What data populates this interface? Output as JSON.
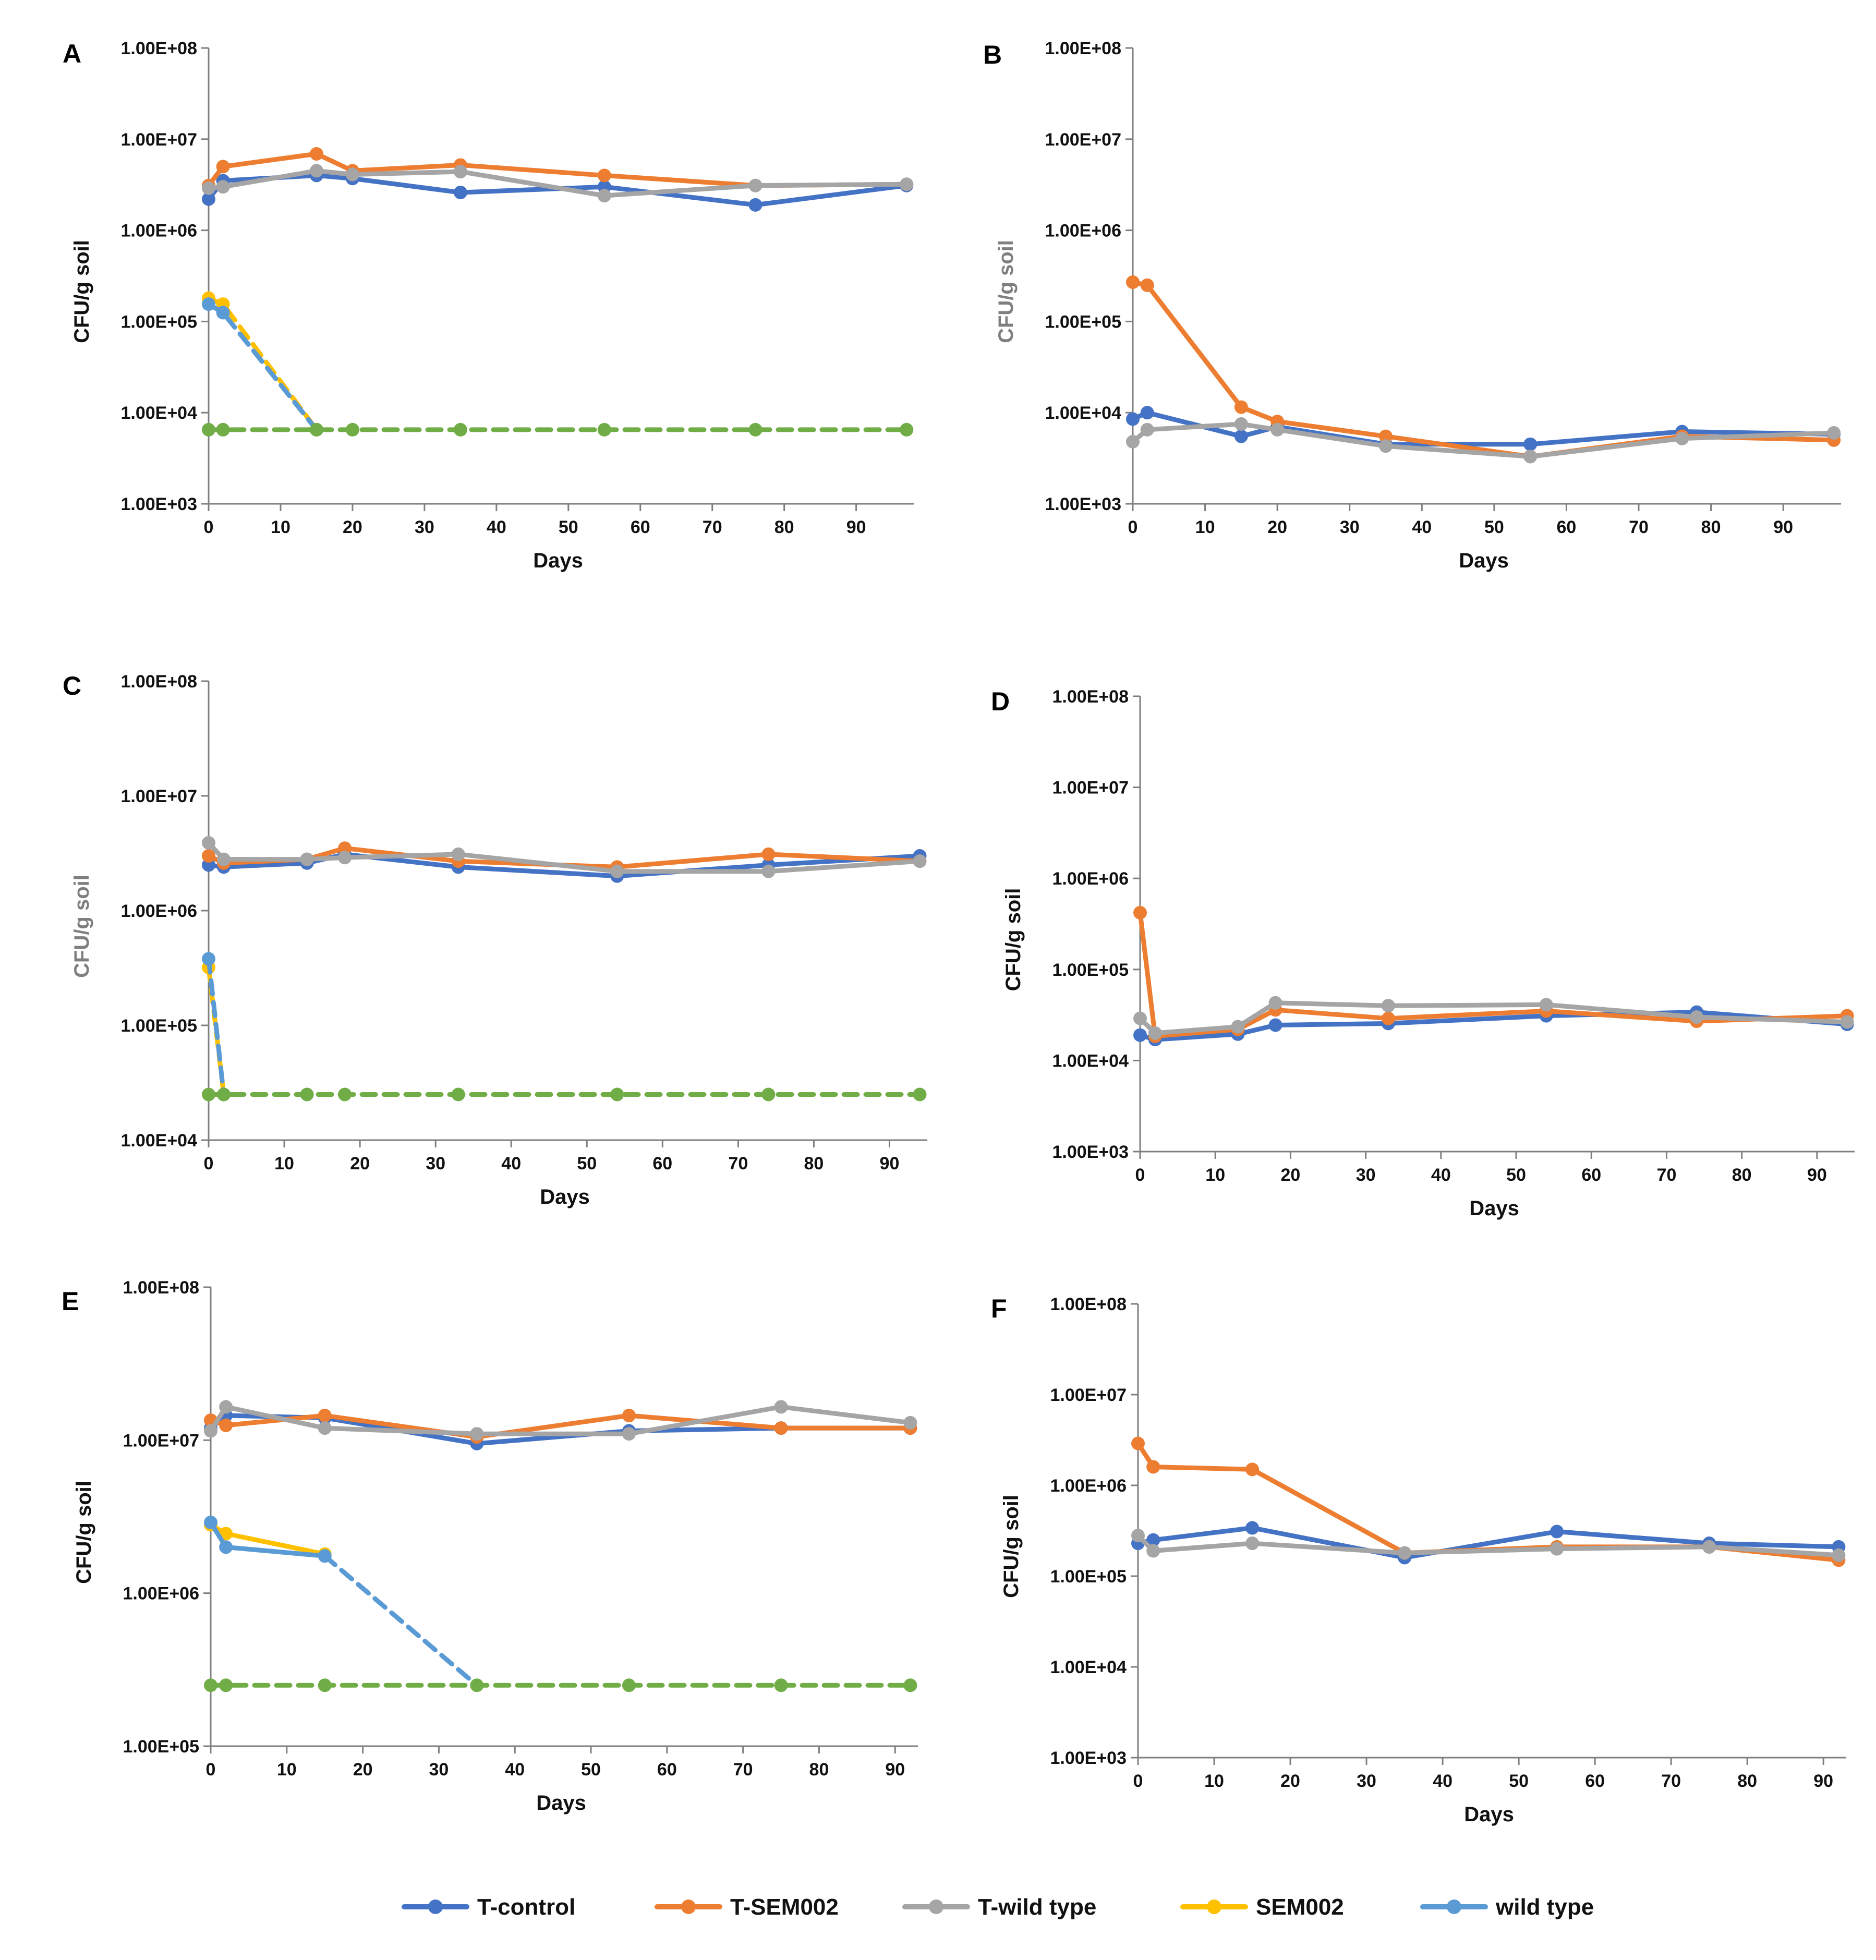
{
  "figure": {
    "legend": [
      {
        "name": "T-control",
        "color": "#4472C4"
      },
      {
        "name": "T-SEM002",
        "color": "#ED7D31"
      },
      {
        "name": "T-wild type",
        "color": "#A5A5A5"
      },
      {
        "name": "SEM002",
        "color": "#FFC000"
      },
      {
        "name": "wild type",
        "color": "#5B9BD5"
      }
    ],
    "limit_color": "#70AD47"
  },
  "chart_data": [
    {
      "panel": "A",
      "type": "line",
      "xlabel": "Days",
      "ylabel": "CFU/g soil",
      "ylabel_color": "#111111",
      "xlim": [
        0,
        98
      ],
      "xticks": [
        0,
        10,
        20,
        30,
        40,
        50,
        60,
        70,
        80,
        90
      ],
      "ylim": [
        1000,
        100000000
      ],
      "yscale": "log",
      "yticklabels": [
        "1.00E+03",
        "1.00E+04",
        "1.00E+05",
        "1.00E+06",
        "1.00E+07",
        "1.00E+08"
      ],
      "series": [
        {
          "name": "T-control",
          "color": "#4472C4",
          "dashed": false,
          "x": [
            0,
            2,
            15,
            20,
            35,
            55,
            76,
            97
          ],
          "y": [
            2200000,
            3500000,
            4000000,
            3700000,
            2600000,
            3000000,
            1900000,
            3100000
          ]
        },
        {
          "name": "T-SEM002",
          "color": "#ED7D31",
          "dashed": false,
          "x": [
            0,
            2,
            15,
            20,
            35,
            55,
            76,
            97
          ],
          "y": [
            3100000,
            5000000,
            6900000,
            4500000,
            5200000,
            4000000,
            3100000,
            3200000
          ]
        },
        {
          "name": "T-wild type",
          "color": "#A5A5A5",
          "dashed": false,
          "x": [
            0,
            2,
            15,
            20,
            35,
            55,
            76,
            97
          ],
          "y": [
            2900000,
            3000000,
            4500000,
            4100000,
            4400000,
            2400000,
            3100000,
            3200000
          ]
        },
        {
          "name": "SEM002",
          "color": "#FFC000",
          "dashed": true,
          "x": [
            0,
            2,
            15
          ],
          "y": [
            180000,
            155000,
            6500
          ]
        },
        {
          "name": "wild type",
          "color": "#5B9BD5",
          "dashed": true,
          "x": [
            0,
            2,
            15
          ],
          "y": [
            155000,
            125000,
            6500
          ]
        },
        {
          "name": "detection limit",
          "color": "#70AD47",
          "dashed": true,
          "x": [
            0,
            2,
            15,
            20,
            35,
            55,
            76,
            97
          ],
          "y": [
            6500,
            6500,
            6500,
            6500,
            6500,
            6500,
            6500,
            6500
          ]
        }
      ]
    },
    {
      "panel": "B",
      "type": "line",
      "xlabel": "Days",
      "ylabel": "CFU/g soil",
      "ylabel_color": "#7f7f7f",
      "xlim": [
        0,
        98
      ],
      "xticks": [
        0,
        10,
        20,
        30,
        40,
        50,
        60,
        70,
        80,
        90
      ],
      "ylim": [
        1000,
        100000000
      ],
      "yscale": "log",
      "yticklabels": [
        "1.00E+03",
        "1.00E+04",
        "1.00E+05",
        "1.00E+06",
        "1.00E+07",
        "1.00E+08"
      ],
      "series": [
        {
          "name": "T-control",
          "color": "#4472C4",
          "dashed": false,
          "x": [
            0,
            2,
            15,
            20,
            35,
            55,
            76,
            97
          ],
          "y": [
            8500,
            10000,
            5500,
            7000,
            4500,
            4500,
            6200,
            5800
          ]
        },
        {
          "name": "T-SEM002",
          "color": "#ED7D31",
          "dashed": false,
          "x": [
            0,
            2,
            15,
            20,
            35,
            55,
            76,
            97
          ],
          "y": [
            270000,
            250000,
            11500,
            8000,
            5500,
            3300,
            5500,
            5000
          ]
        },
        {
          "name": "T-wild type",
          "color": "#A5A5A5",
          "dashed": false,
          "x": [
            0,
            2,
            15,
            20,
            35,
            55,
            76,
            97
          ],
          "y": [
            4800,
            6500,
            7500,
            6500,
            4300,
            3300,
            5200,
            6000
          ]
        }
      ]
    },
    {
      "panel": "C",
      "type": "line",
      "xlabel": "Days",
      "ylabel": "CFU/g soil",
      "ylabel_color": "#7f7f7f",
      "xlim": [
        0,
        95
      ],
      "xticks": [
        0,
        10,
        20,
        30,
        40,
        50,
        60,
        70,
        80,
        90
      ],
      "ylim": [
        10000,
        100000000
      ],
      "yscale": "log",
      "yticklabels": [
        "1.00E+04",
        "1.00E+05",
        "1.00E+06",
        "1.00E+07",
        "1.00E+08"
      ],
      "series": [
        {
          "name": "T-control",
          "color": "#4472C4",
          "dashed": false,
          "x": [
            0,
            2,
            13,
            18,
            33,
            54,
            74,
            94
          ],
          "y": [
            2500000,
            2400000,
            2600000,
            3100000,
            2400000,
            2000000,
            2500000,
            3000000
          ]
        },
        {
          "name": "T-SEM002",
          "color": "#ED7D31",
          "dashed": false,
          "x": [
            0,
            2,
            13,
            18,
            33,
            54,
            74,
            94
          ],
          "y": [
            3000000,
            2600000,
            2800000,
            3500000,
            2700000,
            2400000,
            3100000,
            2700000
          ]
        },
        {
          "name": "T-wild type",
          "color": "#A5A5A5",
          "dashed": false,
          "x": [
            0,
            2,
            13,
            18,
            33,
            54,
            74,
            94
          ],
          "y": [
            3900000,
            2800000,
            2800000,
            2900000,
            3100000,
            2200000,
            2200000,
            2700000
          ]
        },
        {
          "name": "SEM002",
          "color": "#FFC000",
          "dashed": true,
          "x": [
            0,
            2
          ],
          "y": [
            320000,
            25000
          ]
        },
        {
          "name": "wild type",
          "color": "#5B9BD5",
          "dashed": true,
          "x": [
            0,
            2
          ],
          "y": [
            380000,
            25000
          ]
        },
        {
          "name": "detection limit",
          "color": "#70AD47",
          "dashed": true,
          "x": [
            0,
            2,
            13,
            18,
            33,
            54,
            74,
            94
          ],
          "y": [
            25000,
            25000,
            25000,
            25000,
            25000,
            25000,
            25000,
            25000
          ]
        }
      ]
    },
    {
      "panel": "D",
      "type": "line",
      "xlabel": "Days",
      "ylabel": "CFU/g soil",
      "ylabel_color": "#111111",
      "xlim": [
        0,
        95
      ],
      "xticks": [
        0,
        10,
        20,
        30,
        40,
        50,
        60,
        70,
        80,
        90
      ],
      "ylim": [
        1000,
        100000000
      ],
      "yscale": "log",
      "yticklabels": [
        "1.00E+03",
        "1.00E+04",
        "1.00E+05",
        "1.00E+06",
        "1.00E+07",
        "1.00E+08"
      ],
      "series": [
        {
          "name": "T-control",
          "color": "#4472C4",
          "dashed": false,
          "x": [
            0,
            2,
            13,
            18,
            33,
            54,
            74,
            94
          ],
          "y": [
            19000,
            17000,
            19500,
            24500,
            25500,
            31000,
            34000,
            25000
          ]
        },
        {
          "name": "T-SEM002",
          "color": "#ED7D31",
          "dashed": false,
          "x": [
            0,
            2,
            13,
            18,
            33,
            54,
            74,
            94
          ],
          "y": [
            420000,
            18500,
            22000,
            36000,
            29000,
            35000,
            27000,
            31000
          ]
        },
        {
          "name": "T-wild type",
          "color": "#A5A5A5",
          "dashed": false,
          "x": [
            0,
            2,
            13,
            18,
            33,
            54,
            74,
            94
          ],
          "y": [
            29000,
            20000,
            23500,
            43000,
            40000,
            41000,
            30000,
            26500
          ]
        }
      ]
    },
    {
      "panel": "E",
      "type": "line",
      "xlabel": "Days",
      "ylabel": "CFU/g soil",
      "ylabel_color": "#111111",
      "xlim": [
        0,
        93
      ],
      "xticks": [
        0,
        10,
        20,
        30,
        40,
        50,
        60,
        70,
        80,
        90
      ],
      "ylim": [
        100000,
        100000000
      ],
      "yscale": "log",
      "yticklabels": [
        "1.00E+05",
        "1.00E+06",
        "1.00E+07",
        "1.00E+08"
      ],
      "series": [
        {
          "name": "T-control",
          "color": "#4472C4",
          "dashed": false,
          "x": [
            0,
            2,
            15,
            35,
            55,
            75,
            92
          ],
          "y": [
            12000000,
            14500000,
            14000000,
            9500000,
            11500000,
            12000000,
            12000000
          ]
        },
        {
          "name": "T-SEM002",
          "color": "#ED7D31",
          "dashed": false,
          "x": [
            0,
            2,
            15,
            35,
            55,
            75,
            92
          ],
          "y": [
            13500000,
            12500000,
            14500000,
            10500000,
            14500000,
            12000000,
            12000000
          ]
        },
        {
          "name": "T-wild type",
          "color": "#A5A5A5",
          "dashed": false,
          "x": [
            0,
            2,
            15,
            35,
            55,
            75,
            92
          ],
          "y": [
            11500000,
            16500000,
            12000000,
            11000000,
            11000000,
            16500000,
            13000000
          ]
        },
        {
          "name": "SEM002",
          "color": "#FFC000",
          "dashed": false,
          "x": [
            0,
            2,
            15
          ],
          "y": [
            2800000,
            2450000,
            1800000
          ]
        },
        {
          "name": "wild type",
          "color": "#5B9BD5",
          "dashed": false,
          "x": [
            0,
            2,
            15
          ],
          "y": [
            2900000,
            2000000,
            1750000
          ]
        },
        {
          "name": "wild type decline",
          "color": "#5B9BD5",
          "dashed": true,
          "x": [
            15,
            35
          ],
          "y": [
            1750000,
            250000
          ]
        },
        {
          "name": "detection limit",
          "color": "#70AD47",
          "dashed": true,
          "x": [
            0,
            2,
            15,
            35,
            55,
            75,
            92
          ],
          "y": [
            250000,
            250000,
            250000,
            250000,
            250000,
            250000,
            250000
          ]
        }
      ]
    },
    {
      "panel": "F",
      "type": "line",
      "xlabel": "Days",
      "ylabel": "CFU/g soil",
      "ylabel_color": "#111111",
      "xlim": [
        0,
        93
      ],
      "xticks": [
        0,
        10,
        20,
        30,
        40,
        50,
        60,
        70,
        80,
        90
      ],
      "ylim": [
        1000,
        100000000
      ],
      "yscale": "log",
      "yticklabels": [
        "1.00E+03",
        "1.00E+04",
        "1.00E+05",
        "1.00E+06",
        "1.00E+07",
        "1.00E+08"
      ],
      "series": [
        {
          "name": "T-control",
          "color": "#4472C4",
          "dashed": false,
          "x": [
            0,
            2,
            15,
            35,
            55,
            75,
            92
          ],
          "y": [
            230000,
            250000,
            340000,
            160000,
            310000,
            230000,
            210000
          ]
        },
        {
          "name": "T-SEM002",
          "color": "#ED7D31",
          "dashed": false,
          "x": [
            0,
            2,
            15,
            35,
            55,
            75,
            92
          ],
          "y": [
            2900000,
            1600000,
            1500000,
            180000,
            210000,
            210000,
            150000
          ]
        },
        {
          "name": "T-wild type",
          "color": "#A5A5A5",
          "dashed": false,
          "x": [
            0,
            2,
            15,
            35,
            55,
            75,
            92
          ],
          "y": [
            280000,
            190000,
            230000,
            180000,
            200000,
            210000,
            170000
          ]
        }
      ]
    }
  ]
}
